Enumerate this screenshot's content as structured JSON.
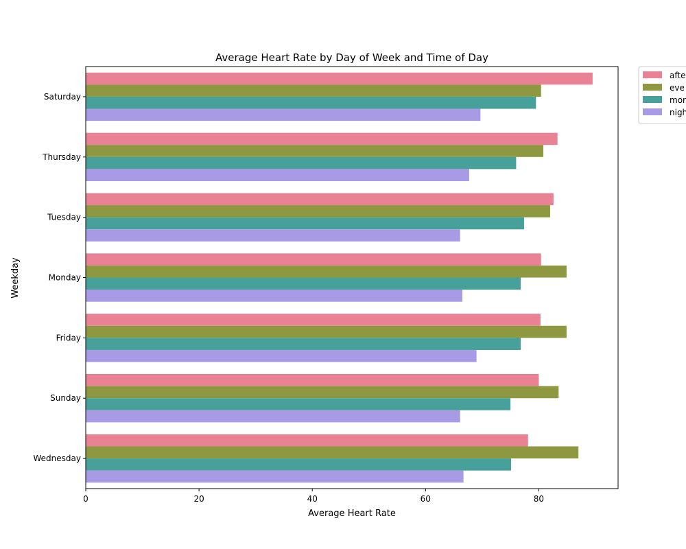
{
  "chart_data": {
    "type": "bar",
    "orientation": "horizontal",
    "title": "Average Heart Rate by Day of Week and Time of Day",
    "xlabel": "Average Heart Rate",
    "ylabel": "Weekday",
    "xlim": [
      0,
      94
    ],
    "xticks": [
      0,
      20,
      40,
      60,
      80
    ],
    "grid": false,
    "legend_position": "outside-top-right",
    "categories": [
      "Saturday",
      "Thursday",
      "Tuesday",
      "Monday",
      "Friday",
      "Sunday",
      "Wednesday"
    ],
    "series": [
      {
        "name": "afte",
        "color": "#e88294",
        "values": [
          89.5,
          83.3,
          82.6,
          80.4,
          80.3,
          80.0,
          78.1
        ]
      },
      {
        "name": "eve",
        "color": "#8e9840",
        "values": [
          80.4,
          80.8,
          82.0,
          84.9,
          84.9,
          83.5,
          87.0
        ]
      },
      {
        "name": "mor",
        "color": "#47a19a",
        "values": [
          79.5,
          76.0,
          77.4,
          76.8,
          76.8,
          75.0,
          75.1
        ]
      },
      {
        "name": "nigh",
        "color": "#a99ae6",
        "values": [
          69.7,
          67.7,
          66.1,
          66.5,
          69.0,
          66.1,
          66.7
        ]
      }
    ]
  }
}
